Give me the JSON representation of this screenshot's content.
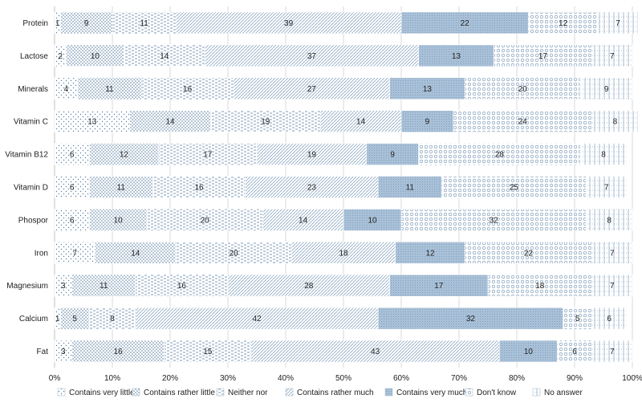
{
  "chart_data": {
    "type": "bar",
    "orientation": "horizontal",
    "stacked": true,
    "categories": [
      "Protein",
      "Lactose",
      "Minerals",
      "Vitamin C",
      "Vitamin B12",
      "Vitamin D",
      "Phospor",
      "Iron",
      "Magnesium",
      "Calcium",
      "Fat"
    ],
    "series": [
      {
        "name": "Contains very little",
        "values": [
          1,
          2,
          4,
          13,
          6,
          6,
          6,
          7,
          3,
          1,
          3
        ],
        "color": "#e9eff5",
        "pattern": "dots-sparse"
      },
      {
        "name": "Contains rather little",
        "values": [
          9,
          10,
          11,
          14,
          12,
          11,
          10,
          14,
          11,
          5,
          16
        ],
        "color": "#dfe8f1",
        "pattern": "dots-dense"
      },
      {
        "name": "Neither nor",
        "values": [
          11,
          14,
          16,
          19,
          17,
          16,
          20,
          20,
          16,
          8,
          15
        ],
        "color": "#e3ebf3",
        "pattern": "dashes"
      },
      {
        "name": "Contains rather much",
        "values": [
          39,
          37,
          27,
          14,
          19,
          23,
          14,
          18,
          28,
          42,
          43
        ],
        "color": "#d8e3ee",
        "pattern": "diagonal"
      },
      {
        "name": "Contains very much",
        "values": [
          22,
          13,
          13,
          9,
          9,
          11,
          10,
          12,
          17,
          32,
          10
        ],
        "color": "#a9c1d8",
        "pattern": "dense-dots"
      },
      {
        "name": "Don't know",
        "values": [
          12,
          17,
          20,
          24,
          28,
          25,
          32,
          22,
          18,
          5,
          6
        ],
        "color": "#e6edf4",
        "pattern": "circles"
      },
      {
        "name": "No answer",
        "values": [
          7,
          7,
          9,
          8,
          8,
          7,
          8,
          7,
          7,
          6,
          7
        ],
        "color": "#eef3f8",
        "pattern": "grid"
      }
    ],
    "xlim": [
      0,
      100
    ],
    "xticks": [
      "0%",
      "10%",
      "20%",
      "30%",
      "40%",
      "50%",
      "60%",
      "70%",
      "80%",
      "90%",
      "100%"
    ],
    "grid": true,
    "legend": "bottom"
  }
}
